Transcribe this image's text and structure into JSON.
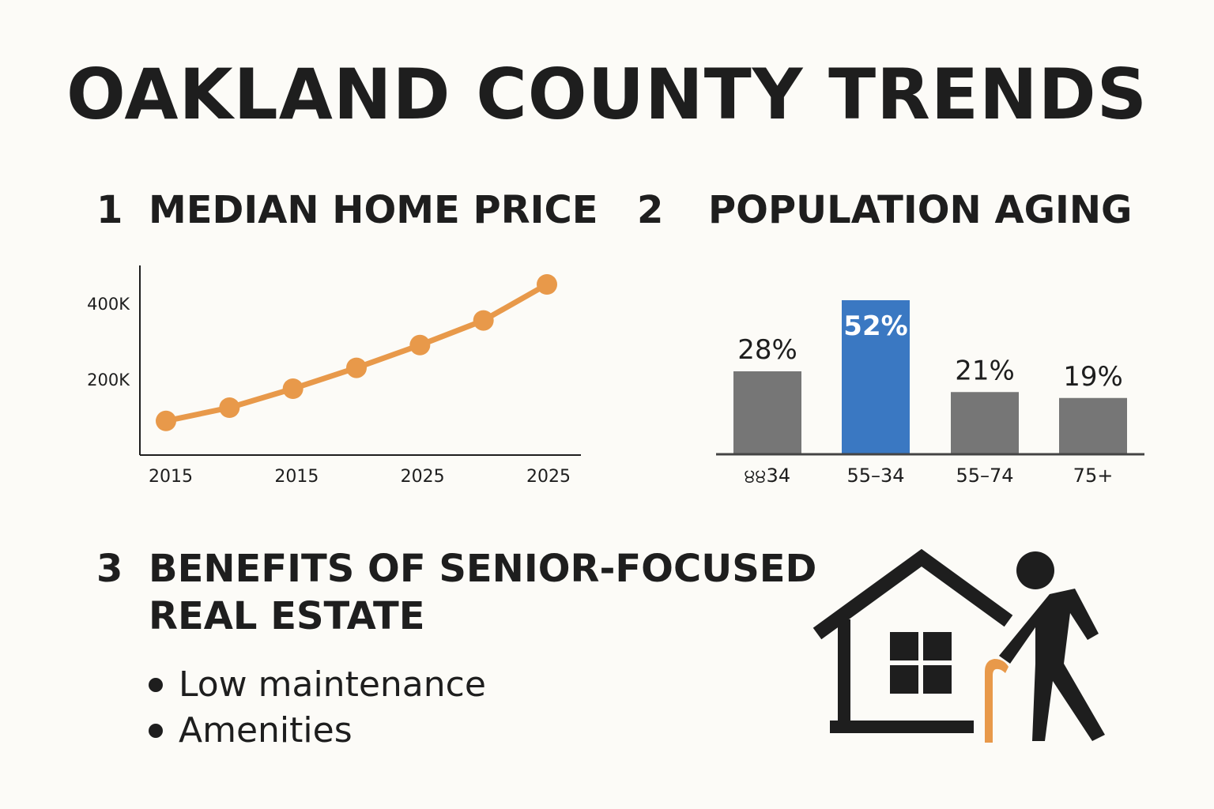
{
  "title": "OAKLAND COUNTY TRENDS",
  "section1": {
    "number": "1",
    "heading": "MEDIAN HOME PRICE"
  },
  "section2": {
    "number": "2",
    "heading": "POPULATION AGING"
  },
  "section3": {
    "number": "3",
    "heading_line1": "BENEFITS OF SENIOR-FOCUSED",
    "heading_line2": "REAL ESTATE"
  },
  "benefits": [
    "Low maintenance",
    "Amenities"
  ],
  "colors": {
    "line": "#e8994a",
    "bar": "#767676",
    "highlight_bar": "#3a78c2",
    "cane": "#e8994a",
    "icon": "#1e1e1e"
  },
  "icons": [
    "house-icon",
    "senior-with-cane-icon"
  ],
  "chart_data": [
    {
      "type": "line",
      "title": "",
      "ylabel": "",
      "xlabel": "",
      "y_ticks": [
        {
          "value": 200000,
          "label": "200K"
        },
        {
          "value": 400000,
          "label": "400K"
        }
      ],
      "x_tick_labels": [
        "2015",
        "2015",
        "2025",
        "2025"
      ],
      "ylim": [
        0,
        500000
      ],
      "series": [
        {
          "values": [
            90000,
            125000,
            175000,
            230000,
            290000,
            355000,
            450000
          ]
        }
      ],
      "grid": false
    },
    {
      "type": "bar",
      "title": "",
      "categories": [
        "੪੪34",
        "55–34",
        "55–74",
        "75+"
      ],
      "values": [
        28,
        52,
        21,
        19
      ],
      "value_labels": [
        "28%",
        "52%",
        "21%",
        "19%"
      ],
      "highlight_index": 1,
      "ylim": [
        0,
        60
      ],
      "grid": false
    }
  ]
}
